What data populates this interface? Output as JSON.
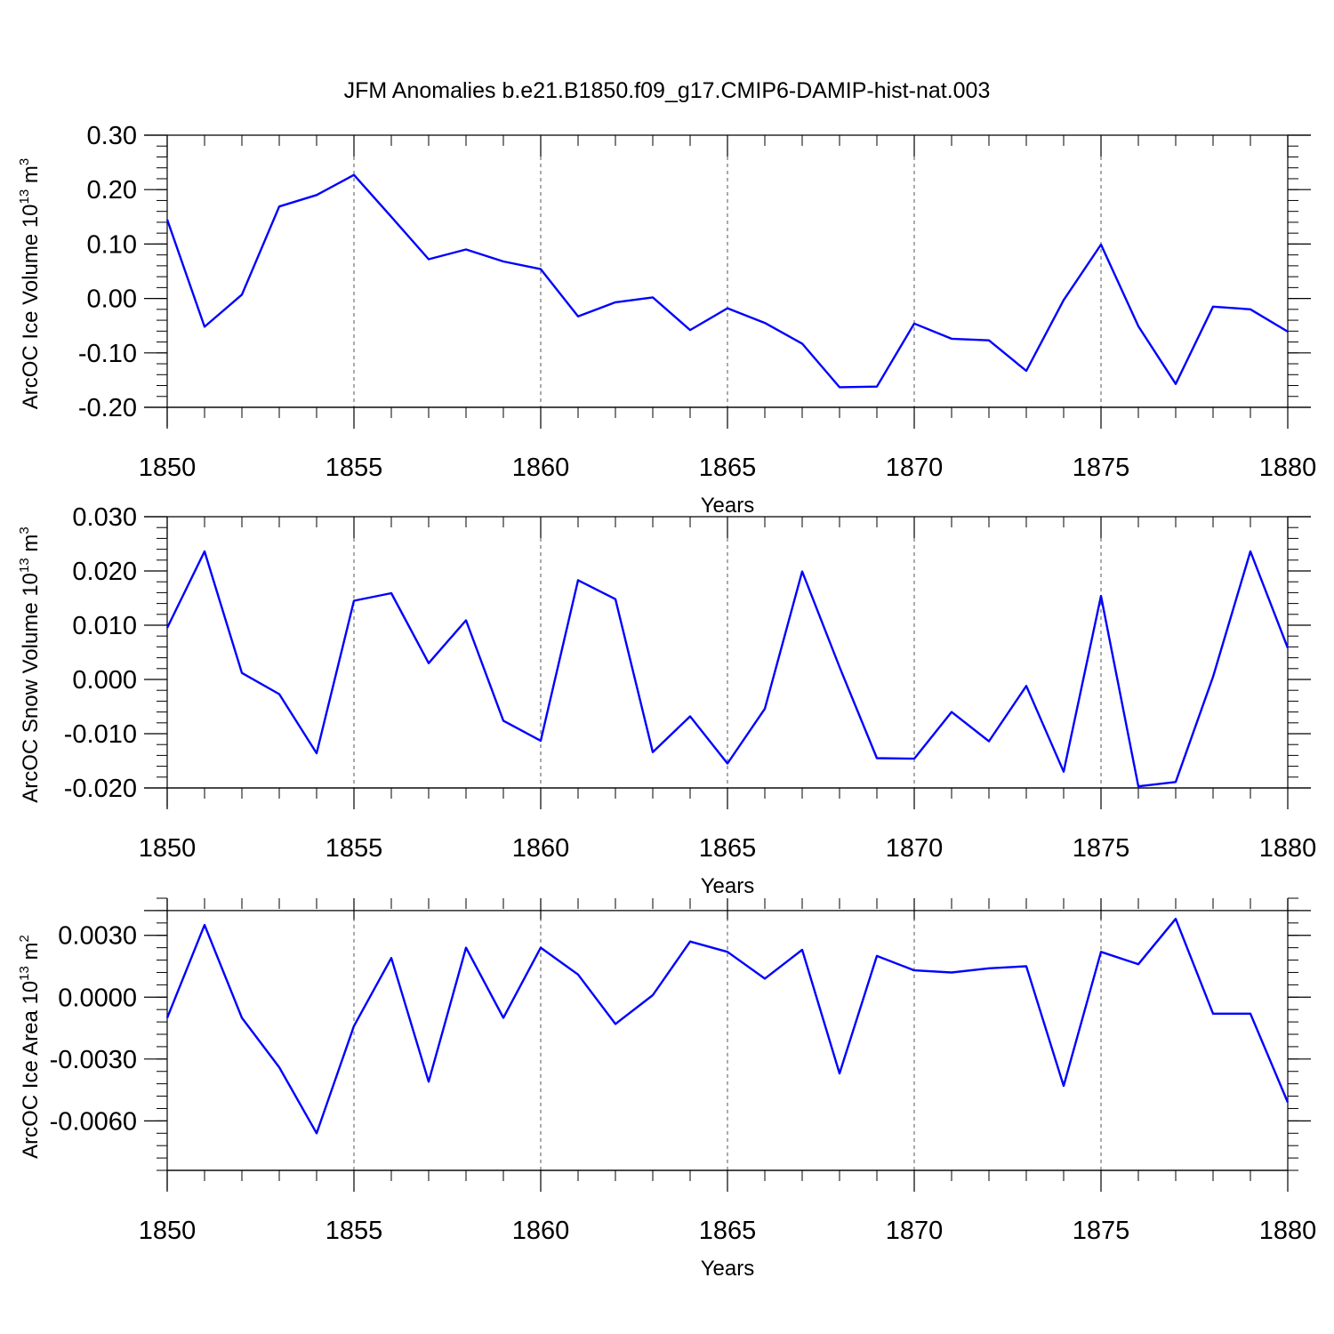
{
  "title": "JFM Anomalies b.e21.B1850.f09_g17.CMIP6-DAMIP-hist-nat.003",
  "chart_data": [
    {
      "type": "line",
      "title": "JFM Anomalies b.e21.B1850.f09_g17.CMIP6-DAMIP-hist-nat.003",
      "xlabel": "Years",
      "ylabel": "ArcOC Ice Volume 10",
      "ylabel_exponent": "13",
      "ylabel_unit": "m",
      "ylabel_unit_exponent": "3",
      "xlim": [
        1850,
        1880
      ],
      "ylim": [
        -0.2,
        0.3
      ],
      "x_ticks": [
        "1850",
        "1855",
        "1860",
        "1865",
        "1870",
        "1875",
        "1880"
      ],
      "y_ticks": [
        0.3,
        0.2,
        0.1,
        0.0,
        -0.1,
        -0.2
      ],
      "y_tick_labels": [
        "0.30",
        "0.20",
        "0.10",
        "0.00",
        "-0.10",
        "-0.20"
      ],
      "grid": "vertical dashed at major x ticks",
      "line_color": "#0000ff",
      "x": [
        1850,
        1851,
        1852,
        1853,
        1854,
        1855,
        1856,
        1857,
        1858,
        1859,
        1860,
        1861,
        1862,
        1863,
        1864,
        1865,
        1866,
        1867,
        1868,
        1869,
        1870,
        1871,
        1872,
        1873,
        1874,
        1875,
        1876,
        1877,
        1878,
        1879,
        1880
      ],
      "values": [
        0.145,
        -0.052,
        0.007,
        0.169,
        0.19,
        0.227,
        0.15,
        0.072,
        0.09,
        0.068,
        0.054,
        -0.033,
        -0.007,
        0.002,
        -0.058,
        -0.018,
        -0.045,
        -0.083,
        -0.163,
        -0.162,
        -0.046,
        -0.074,
        -0.077,
        -0.133,
        -0.003,
        0.099,
        -0.051,
        -0.157,
        -0.015,
        -0.02,
        -0.061
      ]
    },
    {
      "type": "line",
      "xlabel": "Years",
      "ylabel": "ArcOC Snow Volume 10",
      "ylabel_exponent": "13",
      "ylabel_unit": "m",
      "ylabel_unit_exponent": "3",
      "xlim": [
        1850,
        1880
      ],
      "ylim": [
        -0.02,
        0.03
      ],
      "x_ticks": [
        "1850",
        "1855",
        "1860",
        "1865",
        "1870",
        "1875",
        "1880"
      ],
      "y_ticks": [
        0.03,
        0.02,
        0.01,
        0.0,
        -0.01,
        -0.02
      ],
      "y_tick_labels": [
        "0.030",
        "0.020",
        "0.010",
        "0.000",
        "-0.010",
        "-0.020"
      ],
      "grid": "vertical dashed at major x ticks",
      "line_color": "#0000ff",
      "x": [
        1850,
        1851,
        1852,
        1853,
        1854,
        1855,
        1856,
        1857,
        1858,
        1859,
        1860,
        1861,
        1862,
        1863,
        1864,
        1865,
        1866,
        1867,
        1868,
        1869,
        1870,
        1871,
        1872,
        1873,
        1874,
        1875,
        1876,
        1877,
        1878,
        1879,
        1880
      ],
      "values": [
        0.0095,
        0.0236,
        0.0012,
        -0.0027,
        -0.0136,
        0.0145,
        0.0159,
        0.003,
        0.0109,
        -0.0076,
        -0.0113,
        0.0183,
        0.0148,
        -0.0134,
        -0.0068,
        -0.0155,
        -0.0054,
        0.0199,
        0.0023,
        -0.0145,
        -0.0146,
        -0.006,
        -0.0114,
        -0.0012,
        -0.017,
        0.0154,
        -0.0197,
        -0.0189,
        0.0005,
        0.0236,
        0.0058
      ]
    },
    {
      "type": "line",
      "xlabel": "Years",
      "ylabel": "ArcOC Ice Area 10",
      "ylabel_exponent": "13",
      "ylabel_unit": "m",
      "ylabel_unit_exponent": "2",
      "xlim": [
        1850,
        1880
      ],
      "ylim": [
        -0.008,
        0.004
      ],
      "x_ticks": [
        "1850",
        "1855",
        "1860",
        "1865",
        "1870",
        "1875",
        "1880"
      ],
      "y_ticks": [
        0.003,
        0.0,
        -0.003,
        -0.006
      ],
      "y_tick_labels": [
        "0.0030",
        "0.0000",
        "-0.0030",
        "-0.0060"
      ],
      "grid": "vertical dashed at major x ticks",
      "line_color": "#0000ff",
      "x": [
        1850,
        1851,
        1852,
        1853,
        1854,
        1855,
        1856,
        1857,
        1858,
        1859,
        1860,
        1861,
        1862,
        1863,
        1864,
        1865,
        1866,
        1867,
        1868,
        1869,
        1870,
        1871,
        1872,
        1873,
        1874,
        1875,
        1876,
        1877,
        1878,
        1879,
        1880
      ],
      "values": [
        -0.001,
        0.0035,
        -0.001,
        -0.0034,
        -0.0066,
        -0.0014,
        0.0019,
        -0.0041,
        0.0024,
        -0.001,
        0.0024,
        0.0011,
        -0.0013,
        0.0001,
        0.0027,
        0.0022,
        0.0009,
        0.0023,
        -0.0037,
        0.002,
        0.0013,
        0.0012,
        0.0014,
        0.0015,
        -0.0043,
        0.0022,
        0.0016,
        0.0038,
        -0.0008,
        -0.0008,
        -0.0051
      ]
    }
  ]
}
